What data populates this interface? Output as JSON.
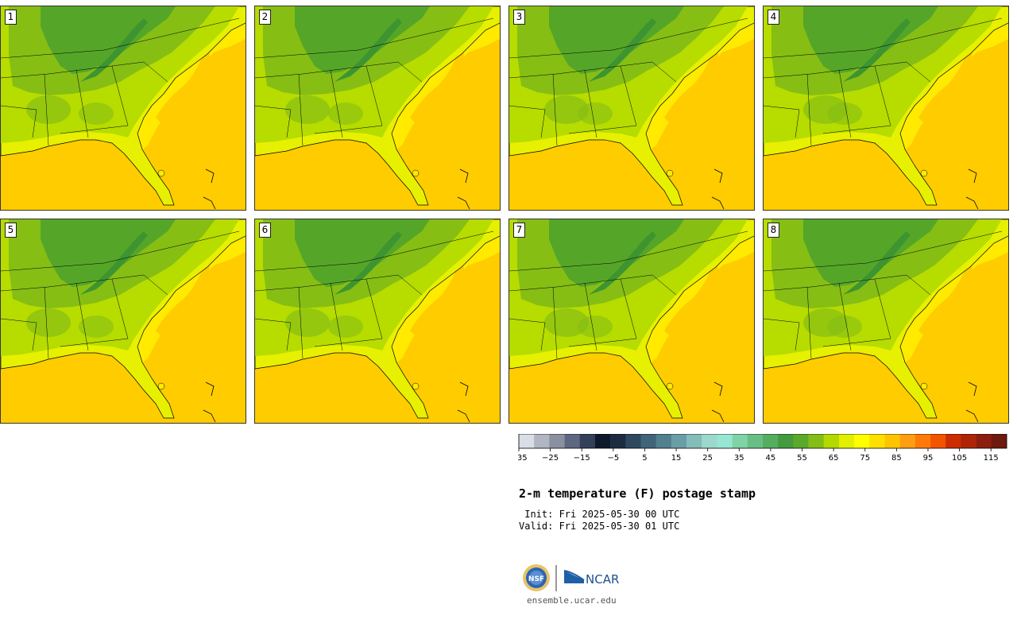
{
  "panels": [
    "1",
    "2",
    "3",
    "4",
    "5",
    "6",
    "7",
    "8"
  ],
  "colorbar": {
    "tick_labels": [
      "−35",
      "−25",
      "−15",
      "−5",
      "5",
      "15",
      "25",
      "35",
      "45",
      "55",
      "65",
      "75",
      "85",
      "95",
      "105",
      "115"
    ],
    "colors": [
      "#d9dde6",
      "#b1b6c2",
      "#8a90a0",
      "#5e6780",
      "#33405a",
      "#0e1a2c",
      "#1c2c40",
      "#2e4860",
      "#406478",
      "#52808e",
      "#6a9ea6",
      "#84bcba",
      "#9cd8cc",
      "#96e6d4",
      "#7fd3a6",
      "#68bf83",
      "#55ad60",
      "#439a3f",
      "#5aa92a",
      "#84bd16",
      "#b3d900",
      "#e3ee00",
      "#ffff00",
      "#ffdf00",
      "#ffc400",
      "#ff9e10",
      "#ff7a08",
      "#f25400",
      "#cc2c00",
      "#ad2408",
      "#8b1e0e",
      "#6e1a0c"
    ]
  },
  "map_colors": {
    "ocean": "#ffcc00",
    "ocean_warm": "#ffea00",
    "coast": "#e6f000",
    "land_low": "#b6dc00",
    "land_mid": "#86be14",
    "land_high": "#55a628",
    "mountain": "#3e9430"
  },
  "title": "2-m temperature (F) postage stamp",
  "init": " Init: Fri 2025-05-30 00 UTC",
  "valid": "Valid: Fri 2025-05-30 01 UTC",
  "logo": {
    "nsf": "NSF",
    "ncar": "NCAR"
  },
  "url": "ensemble.ucar.edu"
}
